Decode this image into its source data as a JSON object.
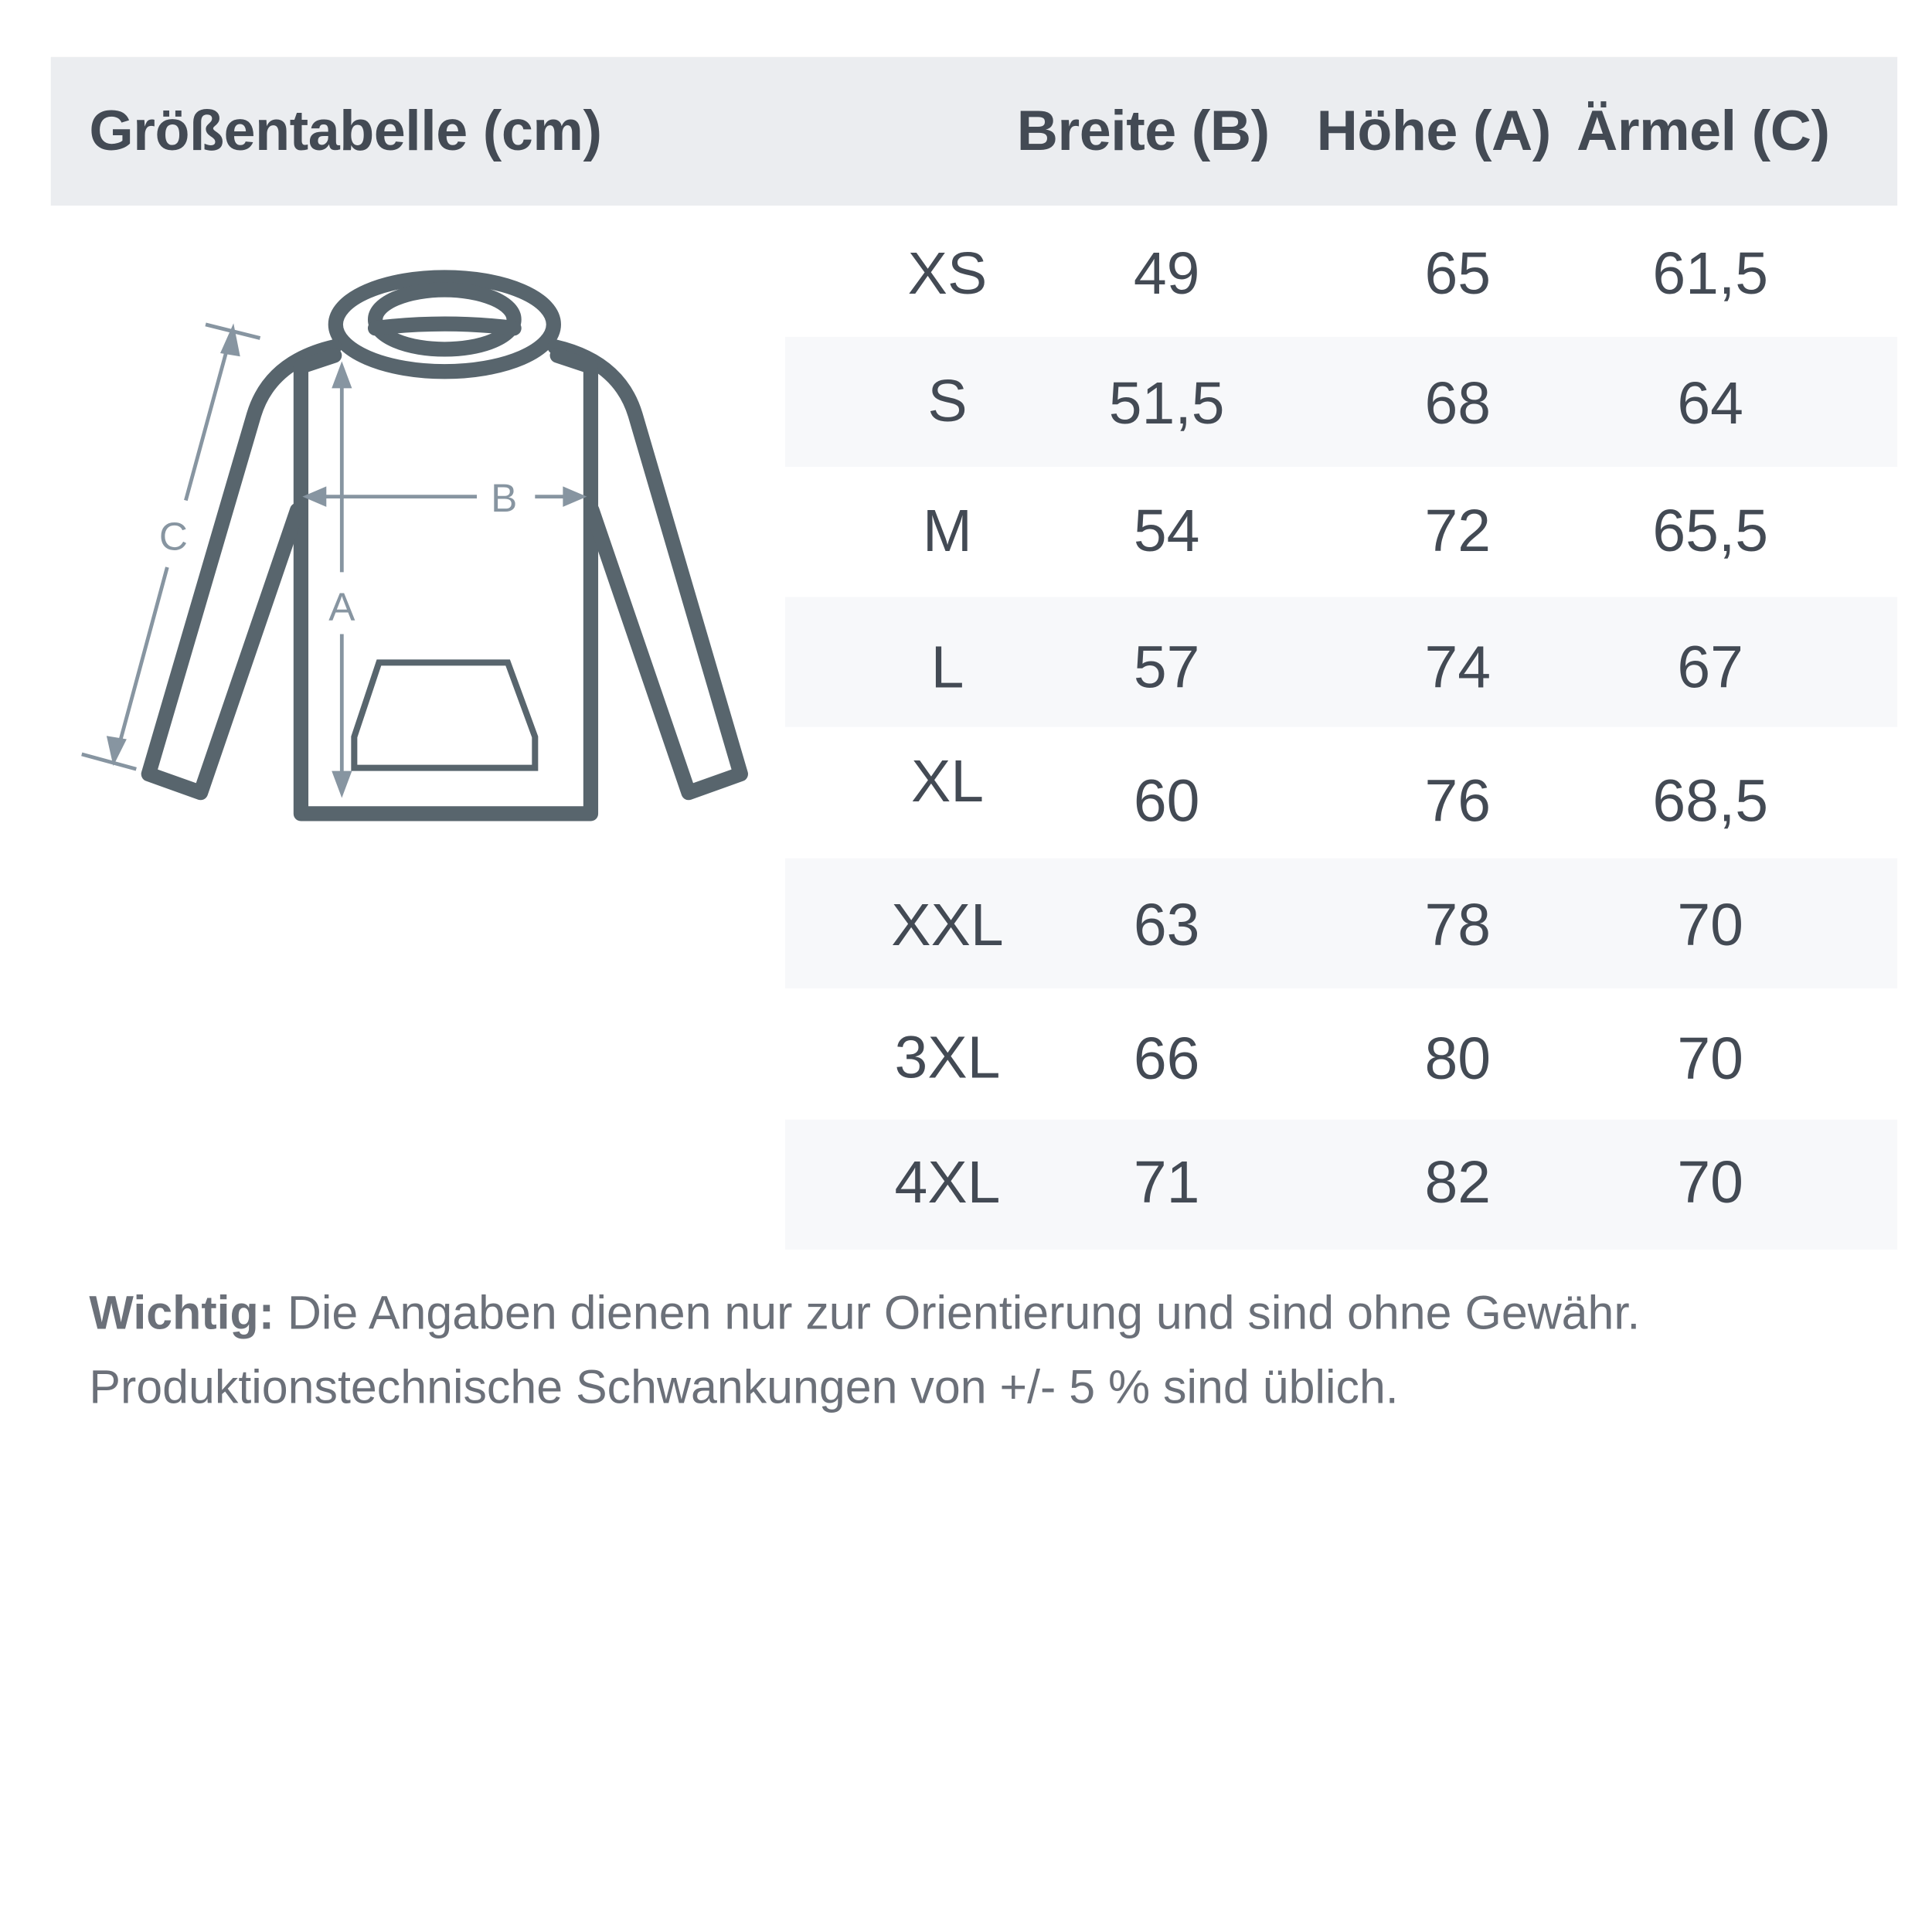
{
  "header": {
    "title": "Größentabelle (cm)",
    "columns": [
      "Breite (B)",
      "Höhe (A)",
      "Ärmel (C)"
    ]
  },
  "diagram": {
    "labels": {
      "width": "B",
      "height": "A",
      "sleeve": "C"
    },
    "outline_color": "#58656d",
    "arrow_color": "#8795a1"
  },
  "rows": [
    {
      "size": "XS",
      "breite": "49",
      "hoehe": "65",
      "aermel": "61,5"
    },
    {
      "size": "S",
      "breite": "51,5",
      "hoehe": "68",
      "aermel": "64"
    },
    {
      "size": "M",
      "breite": "54",
      "hoehe": "72",
      "aermel": "65,5"
    },
    {
      "size": "L",
      "breite": "57",
      "hoehe": "74",
      "aermel": "67"
    },
    {
      "size": "XL",
      "breite": "60",
      "hoehe": "76",
      "aermel": "68,5"
    },
    {
      "size": "XXL",
      "breite": "63",
      "hoehe": "78",
      "aermel": "70"
    },
    {
      "size": "3XL",
      "breite": "66",
      "hoehe": "80",
      "aermel": "70"
    },
    {
      "size": "4XL",
      "breite": "71",
      "hoehe": "82",
      "aermel": "70"
    }
  ],
  "footer": {
    "label": "Wichtig:",
    "line1": " Die Angaben dienen nur zur Orientierung und sind ohne Gewähr.",
    "line2": "Produktionstechnische Schwankungen von +/- 5 % sind üblich."
  }
}
